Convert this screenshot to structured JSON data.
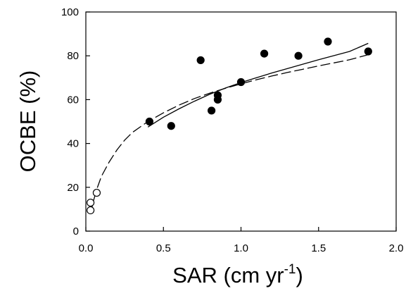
{
  "chart_data": {
    "type": "scatter",
    "title": "",
    "xlabel": "SAR (cm yr",
    "xlabel_sup": "-1",
    "xlabel_close": ")",
    "ylabel": "OCBE (%)",
    "xlim": [
      0.0,
      2.0
    ],
    "ylim": [
      0,
      100
    ],
    "xticks": [
      "0.0",
      "0.5",
      "1.0",
      "1.5",
      "2.0"
    ],
    "yticks": [
      "0",
      "20",
      "40",
      "60",
      "80",
      "100"
    ],
    "xtick_values": [
      0.0,
      0.5,
      1.0,
      1.5,
      2.0
    ],
    "ytick_values": [
      0,
      20,
      40,
      60,
      80,
      100
    ],
    "grid": false,
    "legend": "none",
    "series": [
      {
        "marker": "filled-circle",
        "color": "#000000",
        "points": [
          {
            "x": 0.41,
            "y": 50
          },
          {
            "x": 0.55,
            "y": 48
          },
          {
            "x": 0.74,
            "y": 78
          },
          {
            "x": 0.81,
            "y": 55
          },
          {
            "x": 0.85,
            "y": 62
          },
          {
            "x": 0.85,
            "y": 60
          },
          {
            "x": 1.0,
            "y": 68
          },
          {
            "x": 1.15,
            "y": 81
          },
          {
            "x": 1.37,
            "y": 80
          },
          {
            "x": 1.56,
            "y": 86.5
          },
          {
            "x": 1.82,
            "y": 82
          }
        ]
      },
      {
        "marker": "open-circle",
        "color": "#000000",
        "points": [
          {
            "x": 0.03,
            "y": 9.5
          },
          {
            "x": 0.03,
            "y": 13
          },
          {
            "x": 0.07,
            "y": 17.5
          }
        ]
      }
    ],
    "fits": [
      {
        "style": "solid",
        "color": "#000000",
        "points": [
          {
            "x": 0.4,
            "y": 47.5
          },
          {
            "x": 0.5,
            "y": 52
          },
          {
            "x": 0.6,
            "y": 55.8
          },
          {
            "x": 0.7,
            "y": 59.3
          },
          {
            "x": 0.8,
            "y": 62.5
          },
          {
            "x": 0.9,
            "y": 65.3
          },
          {
            "x": 1.0,
            "y": 67.8
          },
          {
            "x": 1.1,
            "y": 70
          },
          {
            "x": 1.2,
            "y": 72.2
          },
          {
            "x": 1.3,
            "y": 74.2
          },
          {
            "x": 1.4,
            "y": 76.2
          },
          {
            "x": 1.5,
            "y": 78.2
          },
          {
            "x": 1.6,
            "y": 80.1
          },
          {
            "x": 1.7,
            "y": 82
          },
          {
            "x": 1.82,
            "y": 85.7
          }
        ]
      },
      {
        "style": "dashed",
        "color": "#000000",
        "points": [
          {
            "x": 0.03,
            "y": 8
          },
          {
            "x": 0.05,
            "y": 14
          },
          {
            "x": 0.07,
            "y": 19
          },
          {
            "x": 0.1,
            "y": 25
          },
          {
            "x": 0.15,
            "y": 31.5
          },
          {
            "x": 0.2,
            "y": 37
          },
          {
            "x": 0.25,
            "y": 41.5
          },
          {
            "x": 0.3,
            "y": 45
          },
          {
            "x": 0.4,
            "y": 50
          },
          {
            "x": 0.5,
            "y": 54
          },
          {
            "x": 0.6,
            "y": 57.5
          },
          {
            "x": 0.7,
            "y": 60.5
          },
          {
            "x": 0.8,
            "y": 63
          },
          {
            "x": 0.9,
            "y": 65.2
          },
          {
            "x": 1.0,
            "y": 67.2
          },
          {
            "x": 1.1,
            "y": 69.1
          },
          {
            "x": 1.2,
            "y": 70.8
          },
          {
            "x": 1.3,
            "y": 72.4
          },
          {
            "x": 1.4,
            "y": 73.9
          },
          {
            "x": 1.5,
            "y": 75.4
          },
          {
            "x": 1.6,
            "y": 76.8
          },
          {
            "x": 1.7,
            "y": 78.2
          },
          {
            "x": 1.82,
            "y": 80.5
          }
        ]
      }
    ]
  }
}
